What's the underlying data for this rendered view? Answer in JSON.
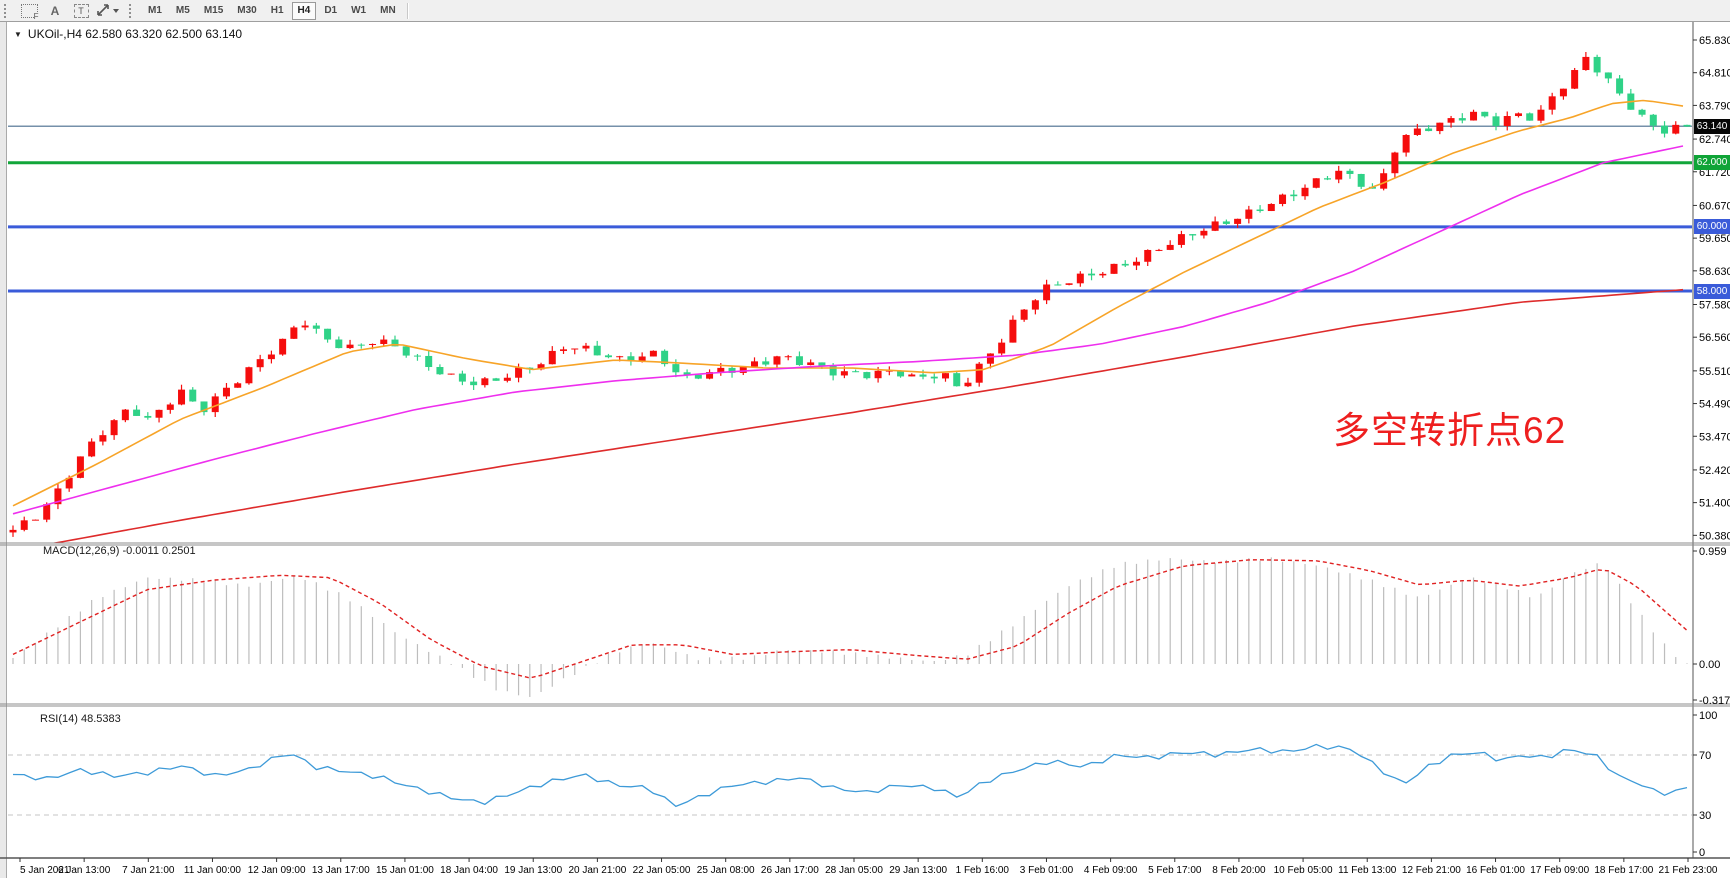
{
  "toolbar": {
    "icons": [
      {
        "name": "fibonacci-tool-icon",
        "label": "F"
      },
      {
        "name": "text-label-tool-icon",
        "label": "A"
      },
      {
        "name": "text-box-tool-icon",
        "label": "T"
      },
      {
        "name": "arrows-tool-icon",
        "label": "arrows"
      }
    ],
    "timeframes": [
      "M1",
      "M5",
      "M15",
      "M30",
      "H1",
      "H4",
      "D1",
      "W1",
      "MN"
    ],
    "active_timeframe": "H4"
  },
  "main_chart": {
    "title": "UKOil-,H4  62.580 63.320 62.500 63.140",
    "symbol": "UKOil-",
    "timeframe": "H4",
    "ohlc": {
      "open": "62.580",
      "high": "63.320",
      "low": "62.500",
      "close": "63.140"
    },
    "annotation": {
      "text": "多空转折点62",
      "color": "#ee1f1f"
    }
  },
  "macd_pane": {
    "label": "MACD(12,26,9) -0.0011 0.2501"
  },
  "rsi_pane": {
    "label": "RSI(14) 48.5383"
  },
  "chart_data": [
    {
      "type": "candlestick",
      "title": "UKOil-,H4",
      "bull_color": "#f50d0d",
      "bear_color": "#2fd287",
      "n_candles": 150,
      "wiggle": 0.12,
      "wick": 0.22,
      "ylim": [
        50.14,
        66.4
      ],
      "y_ticks": [
        {
          "label": "65.830",
          "value": 65.83
        },
        {
          "label": "64.810",
          "value": 64.81
        },
        {
          "label": "63.790",
          "value": 63.79
        },
        {
          "label": "62.740",
          "value": 62.74
        },
        {
          "label": "61.720",
          "value": 61.72
        },
        {
          "label": "60.670",
          "value": 60.67
        },
        {
          "label": "59.650",
          "value": 59.65
        },
        {
          "label": "58.630",
          "value": 58.63
        },
        {
          "label": "57.580",
          "value": 57.58
        },
        {
          "label": "56.560",
          "value": 56.56
        },
        {
          "label": "55.510",
          "value": 55.51
        },
        {
          "label": "54.490",
          "value": 54.49
        },
        {
          "label": "53.470",
          "value": 53.47
        },
        {
          "label": "52.420",
          "value": 52.42
        },
        {
          "label": "51.400",
          "value": 51.4
        },
        {
          "label": "50.380",
          "value": 50.38
        }
      ],
      "price_lines": [
        {
          "label": "63.140",
          "value": 63.14,
          "line_color": "#7590aa",
          "box_color": "#060606",
          "width": 1.6
        },
        {
          "label": "62.000",
          "value": 62.0,
          "line_color": "#12a63a",
          "box_color": "#0fa437",
          "width": 3
        },
        {
          "label": "60.000",
          "value": 60.0,
          "line_color": "#3a5bd9",
          "box_color": "#3a5bd9",
          "width": 3
        },
        {
          "label": "58.000",
          "value": 58.0,
          "line_color": "#3a5bd9",
          "box_color": "#3a5bd9",
          "width": 3
        }
      ],
      "close_anchors": [
        [
          0.0,
          50.55
        ],
        [
          0.012,
          50.9
        ],
        [
          0.025,
          51.6
        ],
        [
          0.04,
          52.8
        ],
        [
          0.055,
          53.7
        ],
        [
          0.07,
          54.35
        ],
        [
          0.082,
          53.95
        ],
        [
          0.1,
          54.9
        ],
        [
          0.112,
          54.25
        ],
        [
          0.13,
          55.05
        ],
        [
          0.15,
          55.95
        ],
        [
          0.163,
          56.5
        ],
        [
          0.172,
          57.15
        ],
        [
          0.185,
          56.55
        ],
        [
          0.2,
          56.2
        ],
        [
          0.215,
          56.45
        ],
        [
          0.228,
          56.3
        ],
        [
          0.245,
          55.75
        ],
        [
          0.262,
          55.3
        ],
        [
          0.278,
          55.1
        ],
        [
          0.295,
          55.35
        ],
        [
          0.315,
          55.75
        ],
        [
          0.33,
          56.3
        ],
        [
          0.345,
          56.15
        ],
        [
          0.362,
          55.85
        ],
        [
          0.385,
          56.05
        ],
        [
          0.4,
          55.25
        ],
        [
          0.415,
          55.45
        ],
        [
          0.435,
          55.6
        ],
        [
          0.458,
          55.95
        ],
        [
          0.475,
          55.75
        ],
        [
          0.492,
          55.45
        ],
        [
          0.51,
          55.4
        ],
        [
          0.528,
          55.5
        ],
        [
          0.54,
          55.25
        ],
        [
          0.555,
          55.45
        ],
        [
          0.565,
          54.95
        ],
        [
          0.575,
          55.5
        ],
        [
          0.588,
          56.3
        ],
        [
          0.6,
          57.2
        ],
        [
          0.615,
          58.05
        ],
        [
          0.632,
          58.35
        ],
        [
          0.65,
          58.6
        ],
        [
          0.668,
          58.9
        ],
        [
          0.685,
          59.35
        ],
        [
          0.702,
          59.75
        ],
        [
          0.718,
          60.05
        ],
        [
          0.735,
          60.35
        ],
        [
          0.75,
          60.7
        ],
        [
          0.765,
          61.05
        ],
        [
          0.78,
          61.45
        ],
        [
          0.792,
          61.75
        ],
        [
          0.802,
          61.45
        ],
        [
          0.815,
          61.1
        ],
        [
          0.828,
          62.75
        ],
        [
          0.842,
          63.05
        ],
        [
          0.858,
          63.3
        ],
        [
          0.872,
          63.55
        ],
        [
          0.885,
          63.25
        ],
        [
          0.898,
          63.5
        ],
        [
          0.91,
          63.4
        ],
        [
          0.922,
          64.2
        ],
        [
          0.932,
          64.75
        ],
        [
          0.94,
          65.3
        ],
        [
          0.952,
          64.6
        ],
        [
          0.963,
          63.95
        ],
        [
          0.975,
          63.3
        ],
        [
          0.985,
          63.0
        ],
        [
          1.0,
          63.14
        ]
      ],
      "moving_averages": [
        {
          "name": "ma-fast",
          "color": "#f7a428",
          "points": [
            [
              0.0,
              51.3
            ],
            [
              0.05,
              52.6
            ],
            [
              0.1,
              54.0
            ],
            [
              0.15,
              55.0
            ],
            [
              0.2,
              56.1
            ],
            [
              0.23,
              56.35
            ],
            [
              0.27,
              55.9
            ],
            [
              0.31,
              55.55
            ],
            [
              0.36,
              55.85
            ],
            [
              0.4,
              55.75
            ],
            [
              0.45,
              55.6
            ],
            [
              0.5,
              55.6
            ],
            [
              0.55,
              55.45
            ],
            [
              0.58,
              55.55
            ],
            [
              0.62,
              56.3
            ],
            [
              0.66,
              57.5
            ],
            [
              0.7,
              58.6
            ],
            [
              0.74,
              59.6
            ],
            [
              0.78,
              60.6
            ],
            [
              0.82,
              61.4
            ],
            [
              0.86,
              62.3
            ],
            [
              0.9,
              63.0
            ],
            [
              0.93,
              63.4
            ],
            [
              0.955,
              63.85
            ],
            [
              0.975,
              63.95
            ],
            [
              1.0,
              63.75
            ]
          ]
        },
        {
          "name": "ma-mid",
          "color": "#ee2fee",
          "points": [
            [
              0.0,
              51.05
            ],
            [
              0.06,
              51.9
            ],
            [
              0.12,
              52.75
            ],
            [
              0.18,
              53.55
            ],
            [
              0.24,
              54.3
            ],
            [
              0.3,
              54.85
            ],
            [
              0.36,
              55.2
            ],
            [
              0.42,
              55.45
            ],
            [
              0.48,
              55.65
            ],
            [
              0.54,
              55.8
            ],
            [
              0.6,
              56.0
            ],
            [
              0.65,
              56.35
            ],
            [
              0.7,
              56.9
            ],
            [
              0.75,
              57.65
            ],
            [
              0.8,
              58.6
            ],
            [
              0.85,
              59.8
            ],
            [
              0.9,
              61.0
            ],
            [
              0.95,
              62.0
            ],
            [
              1.0,
              62.55
            ]
          ]
        },
        {
          "name": "ma-slow",
          "color": "#de2b2b",
          "points": [
            [
              0.0,
              49.9
            ],
            [
              0.1,
              50.85
            ],
            [
              0.2,
              51.75
            ],
            [
              0.3,
              52.6
            ],
            [
              0.4,
              53.4
            ],
            [
              0.5,
              54.2
            ],
            [
              0.6,
              55.05
            ],
            [
              0.7,
              55.95
            ],
            [
              0.8,
              56.9
            ],
            [
              0.9,
              57.65
            ],
            [
              1.0,
              58.05
            ]
          ]
        }
      ],
      "x_labels": [
        "5 Jan 2021",
        "6 Jan 13:00",
        "7 Jan 21:00",
        "11 Jan 00:00",
        "12 Jan 09:00",
        "13 Jan 17:00",
        "15 Jan 01:00",
        "18 Jan 04:00",
        "19 Jan 13:00",
        "20 Jan 21:00",
        "22 Jan 05:00",
        "25 Jan 08:00",
        "26 Jan 17:00",
        "28 Jan 05:00",
        "29 Jan 13:00",
        "1 Feb 16:00",
        "3 Feb 01:00",
        "4 Feb 09:00",
        "5 Feb 17:00",
        "8 Feb 20:00",
        "10 Feb 05:00",
        "11 Feb 13:00",
        "12 Feb 21:00",
        "16 Feb 01:00",
        "17 Feb 09:00",
        "18 Feb 17:00",
        "21 Feb 23:00"
      ]
    },
    {
      "type": "bar",
      "title": "MACD(12,26,9)",
      "label": "MACD(12,26,9) -0.0011 0.2501",
      "main_value": -0.0011,
      "signal_value": 0.2501,
      "histogram_color": "#bdbdbd",
      "signal_color": "#e02222",
      "y_ticks": [
        {
          "label": "0.959",
          "value": 0.959
        },
        {
          "label": "0.00",
          "value": 0.0
        },
        {
          "label": "-0.3171",
          "value": -0.3171
        }
      ],
      "histogram_anchors": [
        [
          0.0,
          0.05
        ],
        [
          0.02,
          0.25
        ],
        [
          0.05,
          0.55
        ],
        [
          0.08,
          0.72
        ],
        [
          0.11,
          0.7
        ],
        [
          0.14,
          0.65
        ],
        [
          0.17,
          0.74
        ],
        [
          0.2,
          0.55
        ],
        [
          0.23,
          0.25
        ],
        [
          0.26,
          0.02
        ],
        [
          0.29,
          -0.22
        ],
        [
          0.31,
          -0.28
        ],
        [
          0.33,
          -0.12
        ],
        [
          0.36,
          0.1
        ],
        [
          0.38,
          0.18
        ],
        [
          0.41,
          0.04
        ],
        [
          0.44,
          0.05
        ],
        [
          0.46,
          0.12
        ],
        [
          0.49,
          0.1
        ],
        [
          0.52,
          0.06
        ],
        [
          0.55,
          0.02
        ],
        [
          0.57,
          0.08
        ],
        [
          0.6,
          0.35
        ],
        [
          0.63,
          0.65
        ],
        [
          0.66,
          0.83
        ],
        [
          0.69,
          0.88
        ],
        [
          0.72,
          0.85
        ],
        [
          0.75,
          0.88
        ],
        [
          0.78,
          0.82
        ],
        [
          0.81,
          0.7
        ],
        [
          0.84,
          0.55
        ],
        [
          0.87,
          0.72
        ],
        [
          0.89,
          0.65
        ],
        [
          0.91,
          0.55
        ],
        [
          0.93,
          0.75
        ],
        [
          0.95,
          0.85
        ],
        [
          0.97,
          0.45
        ],
        [
          0.99,
          0.1
        ],
        [
          1.0,
          0.0
        ]
      ],
      "signal_anchors": [
        [
          0.0,
          0.08
        ],
        [
          0.04,
          0.35
        ],
        [
          0.08,
          0.62
        ],
        [
          0.12,
          0.7
        ],
        [
          0.16,
          0.74
        ],
        [
          0.19,
          0.72
        ],
        [
          0.22,
          0.5
        ],
        [
          0.25,
          0.2
        ],
        [
          0.28,
          -0.02
        ],
        [
          0.31,
          -0.12
        ],
        [
          0.34,
          0.02
        ],
        [
          0.37,
          0.16
        ],
        [
          0.4,
          0.16
        ],
        [
          0.43,
          0.08
        ],
        [
          0.46,
          0.1
        ],
        [
          0.5,
          0.12
        ],
        [
          0.54,
          0.07
        ],
        [
          0.57,
          0.04
        ],
        [
          0.6,
          0.15
        ],
        [
          0.63,
          0.42
        ],
        [
          0.66,
          0.65
        ],
        [
          0.7,
          0.82
        ],
        [
          0.74,
          0.87
        ],
        [
          0.78,
          0.86
        ],
        [
          0.81,
          0.78
        ],
        [
          0.84,
          0.66
        ],
        [
          0.87,
          0.7
        ],
        [
          0.9,
          0.65
        ],
        [
          0.93,
          0.72
        ],
        [
          0.95,
          0.8
        ],
        [
          0.97,
          0.65
        ],
        [
          1.0,
          0.28
        ]
      ]
    },
    {
      "type": "line",
      "title": "RSI(14)",
      "label": "RSI(14) 48.5383",
      "current_value": 48.5383,
      "line_color": "#3d9ad8",
      "levels": [
        70,
        30
      ],
      "y_ticks": [
        {
          "label": "100",
          "value": 100
        },
        {
          "label": "70",
          "value": 70
        },
        {
          "label": "30",
          "value": 30
        },
        {
          "label": "0",
          "value": 0
        }
      ],
      "points": [
        [
          0.0,
          57
        ],
        [
          0.02,
          54
        ],
        [
          0.04,
          60
        ],
        [
          0.06,
          56
        ],
        [
          0.08,
          58
        ],
        [
          0.1,
          63
        ],
        [
          0.12,
          56
        ],
        [
          0.14,
          60
        ],
        [
          0.165,
          72
        ],
        [
          0.18,
          62
        ],
        [
          0.2,
          59
        ],
        [
          0.22,
          55
        ],
        [
          0.24,
          48
        ],
        [
          0.26,
          42
        ],
        [
          0.28,
          38
        ],
        [
          0.3,
          45
        ],
        [
          0.32,
          52
        ],
        [
          0.34,
          57
        ],
        [
          0.36,
          50
        ],
        [
          0.38,
          48
        ],
        [
          0.395,
          36
        ],
        [
          0.41,
          42
        ],
        [
          0.43,
          50
        ],
        [
          0.45,
          52
        ],
        [
          0.47,
          55
        ],
        [
          0.49,
          48
        ],
        [
          0.51,
          45
        ],
        [
          0.53,
          50
        ],
        [
          0.55,
          48
        ],
        [
          0.565,
          42
        ],
        [
          0.58,
          52
        ],
        [
          0.6,
          60
        ],
        [
          0.62,
          66
        ],
        [
          0.64,
          62
        ],
        [
          0.66,
          70
        ],
        [
          0.68,
          68
        ],
        [
          0.7,
          72
        ],
        [
          0.72,
          70
        ],
        [
          0.74,
          74
        ],
        [
          0.76,
          72
        ],
        [
          0.78,
          76
        ],
        [
          0.8,
          74
        ],
        [
          0.815,
          62
        ],
        [
          0.83,
          50
        ],
        [
          0.845,
          62
        ],
        [
          0.86,
          70
        ],
        [
          0.875,
          72
        ],
        [
          0.89,
          66
        ],
        [
          0.9,
          70
        ],
        [
          0.915,
          68
        ],
        [
          0.93,
          74
        ],
        [
          0.945,
          70
        ],
        [
          0.96,
          55
        ],
        [
          0.97,
          52
        ],
        [
          0.98,
          46
        ],
        [
          0.99,
          44
        ],
        [
          1.0,
          48.5
        ]
      ]
    }
  ]
}
